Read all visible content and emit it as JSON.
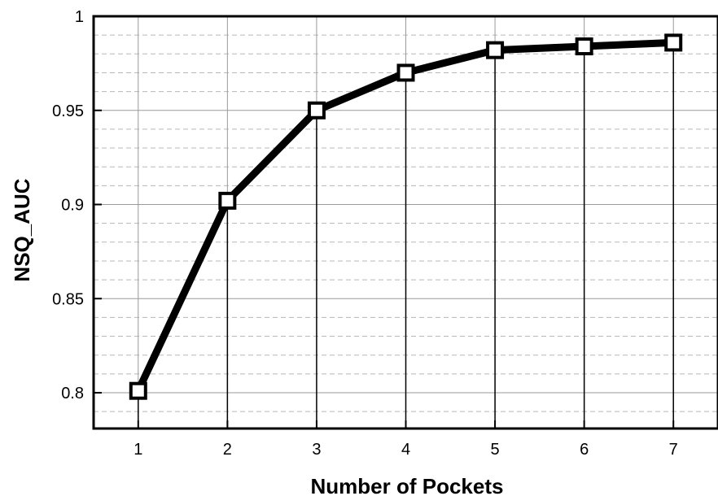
{
  "chart_data": {
    "type": "line",
    "title": "",
    "xlabel": "Number of Pockets",
    "ylabel": "NSQ_AUC",
    "x": [
      1,
      2,
      3,
      4,
      5,
      6,
      7
    ],
    "x_tick_labels": [
      "1",
      "2",
      "3",
      "4",
      "5",
      "6",
      "7"
    ],
    "xlim": [
      0.5,
      7.5
    ],
    "y_ticks": [
      0.8,
      0.85,
      0.9,
      0.95,
      1
    ],
    "y_tick_labels": [
      "0.8",
      "0.85",
      "0.9",
      "0.95",
      "1"
    ],
    "ylim": [
      0.781,
      1
    ],
    "series": [
      {
        "values": [
          0.801,
          0.902,
          0.95,
          0.97,
          0.982,
          0.984,
          0.986
        ]
      }
    ],
    "grid": true,
    "marker": "open-square",
    "drop_lines": true,
    "colors": {
      "line": "#000000",
      "marker_fill": "#ffffff",
      "grid_major": "#9a9a9a",
      "grid_minor": "#b8b8b8"
    }
  }
}
